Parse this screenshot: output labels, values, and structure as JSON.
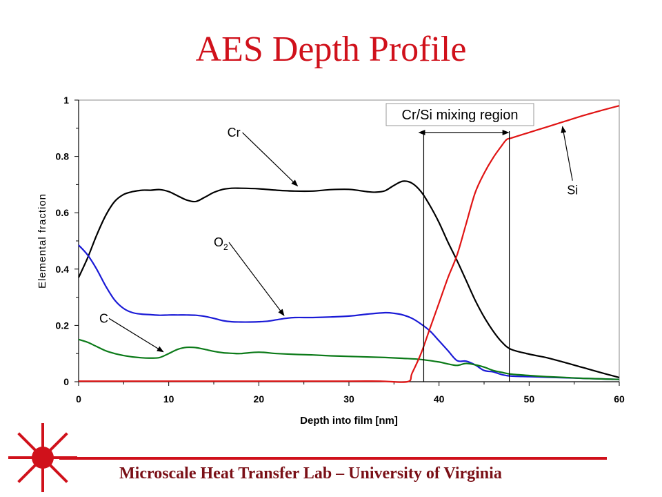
{
  "slide": {
    "title": "AES Depth Profile",
    "footer": "Microscale Heat Transfer Lab – University of Virginia"
  },
  "colors": {
    "title": "#d0111b",
    "footer_text": "#7a0f16",
    "footer_rule": "#d0111b",
    "logo": "#d0111b",
    "Cr": "#000000",
    "O2": "#1a1ad6",
    "C": "#0b7a18",
    "Si": "#e01414"
  },
  "chart_data": {
    "type": "line",
    "xlabel": "Depth into film [nm]",
    "ylabel": "Elemental fraction",
    "xlim": [
      0,
      60
    ],
    "ylim": [
      0,
      1
    ],
    "xticks": [
      0,
      10,
      20,
      30,
      40,
      50,
      60
    ],
    "yticks": [
      0,
      0.2,
      0.4,
      0.6,
      0.8,
      1
    ],
    "ytick_labels": [
      "0",
      "0.2",
      "0.4",
      "0.6",
      "0.8",
      "1"
    ],
    "grid": false,
    "series": [
      {
        "name": "Cr",
        "x": [
          0,
          1,
          2,
          3,
          4,
          5,
          6,
          7,
          8,
          9,
          10,
          11,
          12,
          13,
          14,
          15,
          16,
          17,
          18,
          20,
          22,
          24,
          26,
          28,
          30,
          32,
          33,
          34,
          35,
          36,
          37,
          38,
          39,
          40,
          41,
          42,
          43,
          44,
          45,
          46,
          47,
          48,
          50,
          52,
          54,
          56,
          58,
          60
        ],
        "y": [
          0.37,
          0.44,
          0.52,
          0.59,
          0.64,
          0.665,
          0.675,
          0.68,
          0.68,
          0.682,
          0.675,
          0.66,
          0.645,
          0.64,
          0.655,
          0.672,
          0.683,
          0.687,
          0.687,
          0.685,
          0.68,
          0.677,
          0.677,
          0.682,
          0.683,
          0.675,
          0.673,
          0.678,
          0.697,
          0.712,
          0.705,
          0.675,
          0.625,
          0.565,
          0.495,
          0.43,
          0.36,
          0.29,
          0.23,
          0.18,
          0.14,
          0.115,
          0.098,
          0.085,
          0.068,
          0.05,
          0.032,
          0.015
        ]
      },
      {
        "name": "O2",
        "x": [
          0,
          1,
          2,
          3,
          4,
          5,
          6,
          7,
          8,
          9,
          10,
          11,
          12,
          13,
          14,
          15,
          16,
          17,
          18,
          19,
          20,
          21,
          22,
          23,
          24,
          26,
          28,
          30,
          32,
          34,
          35,
          36,
          37,
          38,
          39,
          40,
          41,
          42,
          43,
          44,
          45,
          46,
          47,
          48,
          50,
          52,
          54,
          56,
          58,
          60
        ],
        "y": [
          0.485,
          0.45,
          0.4,
          0.34,
          0.29,
          0.26,
          0.245,
          0.24,
          0.238,
          0.236,
          0.237,
          0.237,
          0.237,
          0.236,
          0.232,
          0.225,
          0.217,
          0.213,
          0.212,
          0.212,
          0.213,
          0.215,
          0.22,
          0.225,
          0.228,
          0.228,
          0.23,
          0.233,
          0.24,
          0.245,
          0.243,
          0.237,
          0.225,
          0.205,
          0.18,
          0.145,
          0.11,
          0.075,
          0.073,
          0.06,
          0.04,
          0.035,
          0.025,
          0.02,
          0.018,
          0.016,
          0.014,
          0.012,
          0.01,
          0.008
        ]
      },
      {
        "name": "C",
        "x": [
          0,
          1,
          2,
          3,
          4,
          5,
          6,
          7,
          8,
          9,
          10,
          11,
          12,
          13,
          14,
          15,
          16,
          17,
          18,
          20,
          22,
          24,
          26,
          28,
          30,
          32,
          34,
          36,
          38,
          40,
          41,
          42,
          43,
          44,
          45,
          46,
          47,
          48,
          50,
          52,
          54,
          56,
          58,
          60
        ],
        "y": [
          0.15,
          0.14,
          0.125,
          0.11,
          0.1,
          0.093,
          0.088,
          0.085,
          0.084,
          0.086,
          0.1,
          0.115,
          0.122,
          0.121,
          0.115,
          0.108,
          0.103,
          0.101,
          0.1,
          0.105,
          0.1,
          0.097,
          0.095,
          0.092,
          0.09,
          0.088,
          0.086,
          0.083,
          0.079,
          0.07,
          0.063,
          0.058,
          0.065,
          0.06,
          0.052,
          0.04,
          0.033,
          0.027,
          0.022,
          0.018,
          0.015,
          0.012,
          0.01,
          0.008
        ]
      },
      {
        "name": "Si",
        "x": [
          0,
          10,
          20,
          30,
          33.5,
          36.5,
          37,
          38,
          39,
          40,
          41,
          42,
          43,
          44,
          45,
          46,
          47,
          47.5,
          48,
          50,
          52,
          54,
          56,
          58,
          60
        ],
        "y": [
          0.002,
          0.002,
          0.002,
          0.002,
          0.002,
          0,
          0.03,
          0.1,
          0.19,
          0.28,
          0.37,
          0.45,
          0.56,
          0.67,
          0.74,
          0.795,
          0.84,
          0.86,
          0.865,
          0.885,
          0.905,
          0.925,
          0.945,
          0.963,
          0.98
        ]
      }
    ],
    "annotations": {
      "mixing_region": {
        "label": "Cr/Si mixing region",
        "x_start": 38.3,
        "x_end": 47.8
      },
      "series_labels": [
        {
          "label": "Cr",
          "label_x": 16.5,
          "label_y": 0.87,
          "target_x": 24.3,
          "target_y": 0.695
        },
        {
          "label": "O",
          "sub": "2",
          "label_x": 15,
          "label_y": 0.48,
          "target_x": 22.8,
          "target_y": 0.235
        },
        {
          "label": "C",
          "label_x": 2.3,
          "label_y": 0.21,
          "target_x": 9.4,
          "target_y": 0.106
        },
        {
          "label": "Si",
          "label_x": 54.2,
          "label_y": 0.665,
          "target_x": 53.7,
          "target_y": 0.906
        }
      ]
    }
  }
}
